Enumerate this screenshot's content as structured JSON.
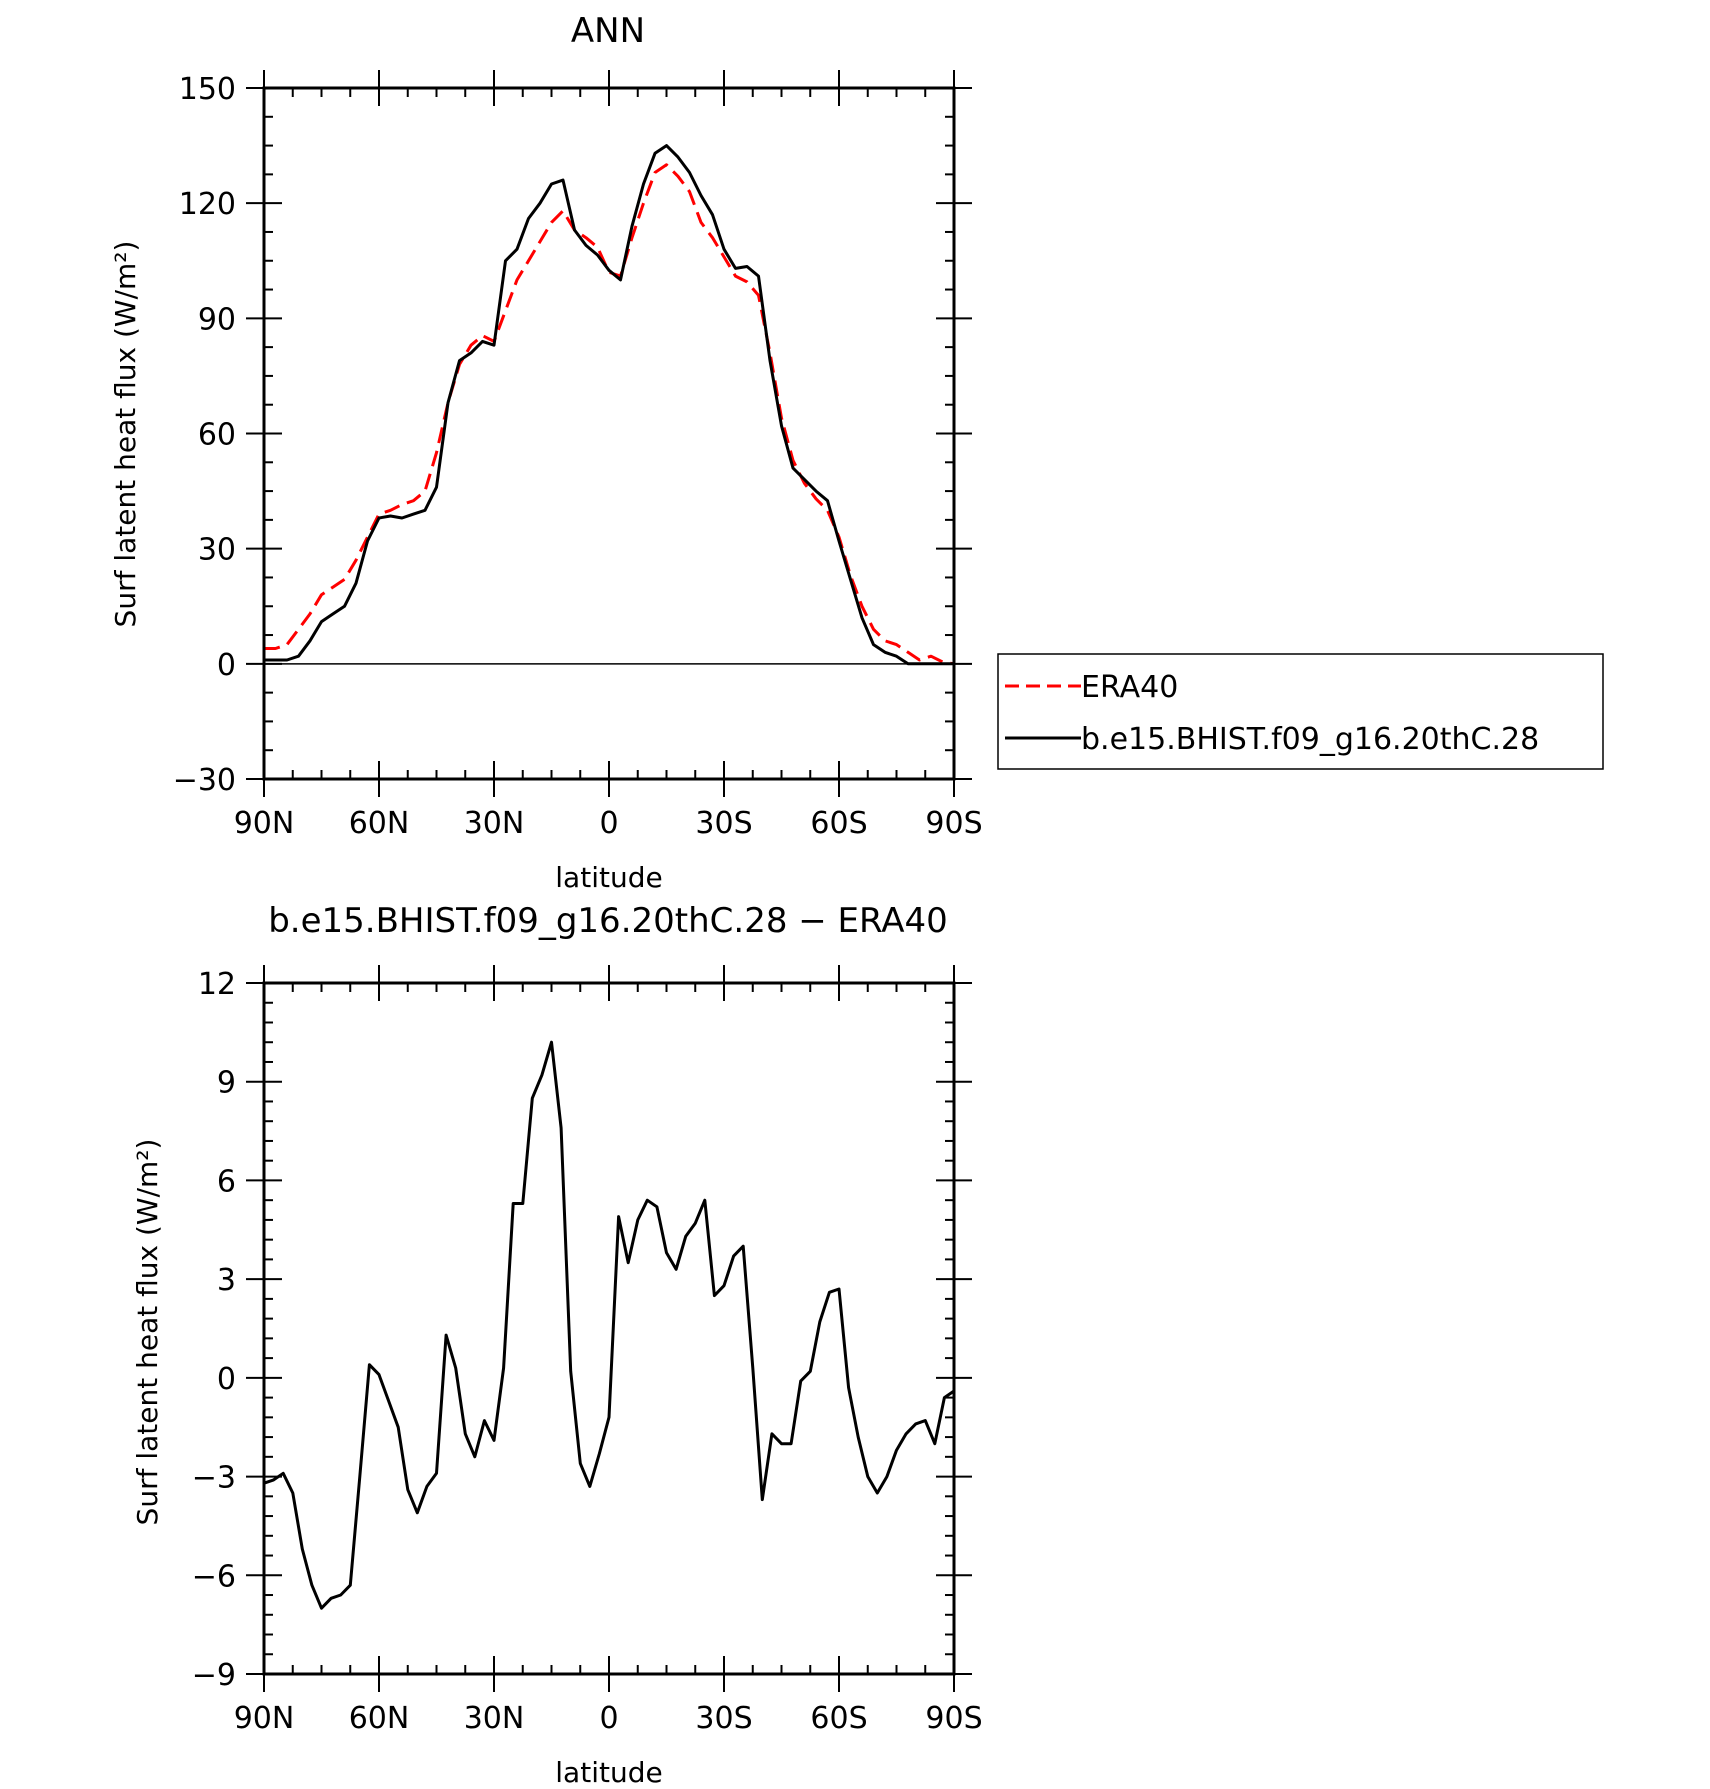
{
  "chart_data": [
    {
      "type": "line",
      "title": "ANN",
      "xlabel": "latitude",
      "ylabel": "Surf latent heat flux (W/m²)",
      "xlim": [
        90,
        -90
      ],
      "ylim": [
        -30,
        150
      ],
      "xticks": [
        90,
        60,
        30,
        0,
        -30,
        -60,
        -90
      ],
      "xtick_labels": [
        "90N",
        "60N",
        "30N",
        "0",
        "30S",
        "60S",
        "90S"
      ],
      "yticks": [
        150,
        120,
        90,
        60,
        30,
        0,
        -30
      ],
      "ytick_labels": [
        "150",
        "120",
        "90",
        "60",
        "30",
        "0",
        "−30"
      ],
      "zero_line": true,
      "legend": {
        "position": "right",
        "entries": [
          "ERA40",
          "b.e15.BHIST.f09_g16.20thC.28"
        ]
      },
      "series": [
        {
          "name": "ERA40",
          "color": "#ff0000",
          "style": "dashed",
          "x": [
            90,
            87,
            84,
            81,
            78,
            75,
            72,
            69,
            66,
            63,
            60,
            57,
            54,
            51,
            48,
            45,
            42,
            39,
            36,
            33,
            30,
            27,
            24,
            21,
            18,
            15,
            12,
            9,
            6,
            3,
            0,
            -3,
            -6,
            -9,
            -12,
            -15,
            -18,
            -21,
            -24,
            -27,
            -30,
            -33,
            -36,
            -39,
            -42,
            -45,
            -48,
            -51,
            -54,
            -57,
            -60,
            -63,
            -66,
            -69,
            -72,
            -75,
            -78,
            -81,
            -84,
            -87,
            -90
          ],
          "y": [
            4,
            4,
            5,
            9,
            13,
            18,
            20,
            22,
            27,
            33,
            39,
            40,
            41.5,
            42.5,
            45,
            55,
            68,
            78,
            83,
            85.5,
            84,
            92,
            100,
            105,
            110,
            115,
            118,
            113,
            111,
            108.5,
            102,
            101,
            111,
            120,
            128,
            130,
            127,
            123,
            115,
            111,
            106,
            101,
            99.5,
            96,
            81,
            64,
            53,
            47,
            43,
            40,
            33,
            23,
            15,
            9,
            6,
            5,
            3,
            1,
            2,
            0.5,
            0
          ]
        },
        {
          "name": "b.e15.BHIST.f09_g16.20thC.28",
          "color": "#000000",
          "style": "solid",
          "x": [
            90,
            87,
            84,
            81,
            78,
            75,
            72,
            69,
            66,
            63,
            60,
            57,
            54,
            51,
            48,
            45,
            42,
            39,
            36,
            33,
            30,
            27,
            24,
            21,
            18,
            15,
            12,
            9,
            6,
            3,
            0,
            -3,
            -6,
            -9,
            -12,
            -15,
            -18,
            -21,
            -24,
            -27,
            -30,
            -33,
            -36,
            -39,
            -42,
            -45,
            -48,
            -51,
            -54,
            -57,
            -60,
            -63,
            -66,
            -69,
            -72,
            -75,
            -78,
            -81,
            -84,
            -87,
            -90
          ],
          "y": [
            1,
            1,
            1,
            2,
            6,
            11,
            13,
            15,
            21,
            32,
            38,
            38.5,
            38,
            39,
            40,
            46,
            68,
            79,
            81,
            84,
            83,
            105,
            108,
            116,
            120,
            125,
            126,
            113,
            109,
            106.5,
            102.5,
            100,
            114,
            125,
            133,
            135,
            132,
            128,
            122,
            117,
            108,
            103,
            103.5,
            101,
            79,
            62,
            51,
            48,
            45,
            42.5,
            32,
            22,
            12,
            5,
            3,
            2,
            0,
            0,
            0,
            0,
            0
          ]
        }
      ]
    },
    {
      "type": "line",
      "title": "b.e15.BHIST.f09_g16.20thC.28 − ERA40",
      "xlabel": "latitude",
      "ylabel": "Surf latent heat flux (W/m²)",
      "xlim": [
        90,
        -90
      ],
      "ylim": [
        -9,
        12
      ],
      "xticks": [
        90,
        60,
        30,
        0,
        -30,
        -60,
        -90
      ],
      "xtick_labels": [
        "90N",
        "60N",
        "30N",
        "0",
        "30S",
        "60S",
        "90S"
      ],
      "yticks": [
        12,
        9,
        6,
        3,
        0,
        -3,
        -6,
        -9
      ],
      "ytick_labels": [
        "12",
        "9",
        "6",
        "3",
        "0",
        "−3",
        "−6",
        "−9"
      ],
      "series": [
        {
          "color": "#000000",
          "style": "solid",
          "x": [
            90,
            87.5,
            85,
            82.5,
            80,
            77.5,
            75,
            72.5,
            70,
            67.5,
            65,
            62.5,
            60,
            57.5,
            55,
            52.5,
            50,
            47.5,
            45,
            42.5,
            40,
            37.5,
            35,
            32.5,
            30,
            27.5,
            25,
            22.5,
            20,
            17.5,
            15,
            12.5,
            10,
            7.5,
            5,
            2.5,
            0,
            -2.5,
            -5,
            -7.5,
            -10,
            -12.5,
            -15,
            -17.5,
            -20,
            -22.5,
            -25,
            -27.5,
            -30,
            -32.5,
            -35,
            -37.5,
            -40,
            -42.5,
            -45,
            -47.5,
            -50,
            -52.5,
            -55,
            -57.5,
            -60,
            -62.5,
            -65,
            -67.5,
            -70,
            -72.5,
            -75,
            -77.5,
            -80,
            -82.5,
            -85,
            -87.5,
            -90
          ],
          "y": [
            -3.2,
            -3.1,
            -2.9,
            -3.5,
            -5.2,
            -6.3,
            -7.0,
            -6.7,
            -6.6,
            -6.3,
            -3.0,
            0.4,
            0.1,
            -0.7,
            -1.5,
            -3.4,
            -4.1,
            -3.3,
            -2.9,
            1.3,
            0.3,
            -1.7,
            -2.4,
            -1.3,
            -1.9,
            0.3,
            5.3,
            5.3,
            8.5,
            9.2,
            10.2,
            7.6,
            0.2,
            -2.6,
            -3.3,
            -2.3,
            -1.2,
            4.9,
            3.5,
            4.8,
            5.4,
            5.2,
            3.8,
            3.3,
            4.3,
            4.7,
            5.4,
            2.5,
            2.8,
            3.7,
            4.0,
            0.3,
            -3.7,
            -1.7,
            -2.0,
            -2.0,
            -0.1,
            0.2,
            1.7,
            2.6,
            2.7,
            -0.3,
            -1.8,
            -3.0,
            -3.5,
            -3.0,
            -2.2,
            -1.7,
            -1.4,
            -1.3,
            -2.0,
            -0.6,
            -0.4
          ]
        }
      ]
    }
  ]
}
